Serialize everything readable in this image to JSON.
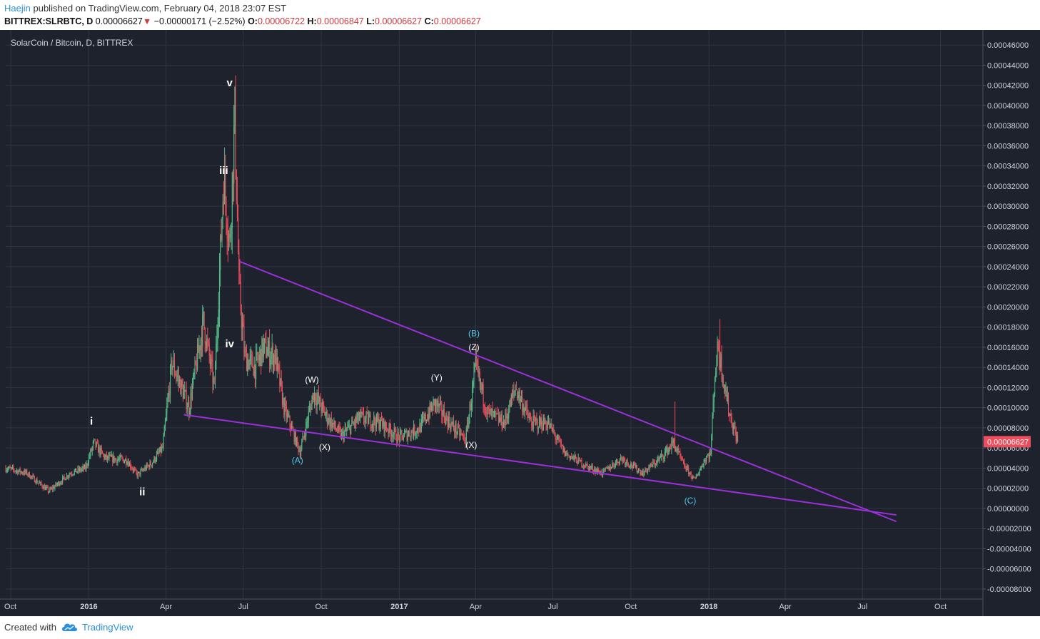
{
  "header": {
    "author": "Haejin",
    "published_text": "published on TradingView.com, February 04, 2018 23:07 EST",
    "symbol_text": "BITTREX:SLRBTC, D",
    "last_price": "0.00006627",
    "change_arrow": "▼",
    "change_text": "−0.00000171 (−2.52%)",
    "o_label": "O:",
    "o_value": "0.00006722",
    "h_label": "H:",
    "h_value": "0.00006847",
    "l_label": "L:",
    "l_value": "0.00006627",
    "c_label": "C:",
    "c_value": "0.00006627"
  },
  "footer": {
    "created_with": "Created with",
    "brand": "TradingView",
    "brand_icon": "cloud-icon"
  },
  "chart_data": {
    "type": "candlestick",
    "title": "SolarCoin / Bitcoin, D, BITTREX",
    "colors": {
      "background": "#1e222d",
      "grid": "#323542",
      "up": "#53b987",
      "down": "#eb4d5c",
      "trendline": "#9b30d9",
      "wave_label_white": "#ffffff",
      "wave_label_cyan": "#55c8e8",
      "last_price_bg": "#eb4d5c"
    },
    "x_range": [
      "2015-09-25",
      "2018-11-20"
    ],
    "y_range": [
      -9e-05,
      0.000475
    ],
    "x_ticks": [
      {
        "date": "2015-10-01",
        "label": "Oct"
      },
      {
        "date": "2016-01-01",
        "label": "2016"
      },
      {
        "date": "2016-04-01",
        "label": "Apr"
      },
      {
        "date": "2016-07-01",
        "label": "Jul"
      },
      {
        "date": "2016-10-01",
        "label": "Oct"
      },
      {
        "date": "2017-01-01",
        "label": "2017"
      },
      {
        "date": "2017-04-01",
        "label": "Apr"
      },
      {
        "date": "2017-07-01",
        "label": "Jul"
      },
      {
        "date": "2017-10-01",
        "label": "Oct"
      },
      {
        "date": "2018-01-01",
        "label": "2018"
      },
      {
        "date": "2018-04-01",
        "label": "Apr"
      },
      {
        "date": "2018-07-01",
        "label": "Jul"
      },
      {
        "date": "2018-10-01",
        "label": "Oct"
      }
    ],
    "y_ticks": [
      "0.00046000",
      "0.00044000",
      "0.00042000",
      "0.00040000",
      "0.00038000",
      "0.00036000",
      "0.00034000",
      "0.00032000",
      "0.00030000",
      "0.00028000",
      "0.00026000",
      "0.00024000",
      "0.00022000",
      "0.00020000",
      "0.00018000",
      "0.00016000",
      "0.00014000",
      "0.00012000",
      "0.00010000",
      "0.00008000",
      "0.00006000",
      "0.00004000",
      "0.00002000",
      "0.00000000",
      "-0.00002000",
      "-0.00004000",
      "-0.00006000",
      "-0.00008000"
    ],
    "last_price": {
      "value": 6.627e-05,
      "label": "0.00006627"
    },
    "price_path": [
      {
        "date": "2015-09-25",
        "close": 4e-05
      },
      {
        "date": "2015-10-20",
        "close": 3.5e-05
      },
      {
        "date": "2015-11-15",
        "close": 1.7e-05
      },
      {
        "date": "2015-12-10",
        "close": 3.5e-05
      },
      {
        "date": "2015-12-28",
        "close": 4e-05
      },
      {
        "date": "2016-01-07",
        "close": 6.5e-05
      },
      {
        "date": "2016-01-20",
        "close": 5e-05
      },
      {
        "date": "2016-02-15",
        "close": 4.8e-05
      },
      {
        "date": "2016-02-27",
        "close": 3.3e-05
      },
      {
        "date": "2016-03-15",
        "close": 4.5e-05
      },
      {
        "date": "2016-03-28",
        "close": 6e-05
      },
      {
        "date": "2016-04-08",
        "close": 0.000145
      },
      {
        "date": "2016-04-28",
        "close": 0.0001
      },
      {
        "date": "2016-05-15",
        "close": 0.000185
      },
      {
        "date": "2016-05-28",
        "close": 0.00012
      },
      {
        "date": "2016-06-08",
        "close": 0.00033
      },
      {
        "date": "2016-06-15",
        "close": 0.00026
      },
      {
        "date": "2016-06-21",
        "close": 0.00039
      },
      {
        "date": "2016-06-26",
        "close": 0.00022
      },
      {
        "date": "2016-07-03",
        "close": 0.00015
      },
      {
        "date": "2016-07-15",
        "close": 0.00014
      },
      {
        "date": "2016-07-25",
        "close": 0.00016
      },
      {
        "date": "2016-08-08",
        "close": 0.00015
      },
      {
        "date": "2016-08-18",
        "close": 0.0001
      },
      {
        "date": "2016-09-06",
        "close": 5.6e-05
      },
      {
        "date": "2016-09-22",
        "close": 0.000115
      },
      {
        "date": "2016-10-08",
        "close": 9e-05
      },
      {
        "date": "2016-10-25",
        "close": 7.2e-05
      },
      {
        "date": "2016-11-15",
        "close": 9e-05
      },
      {
        "date": "2016-12-10",
        "close": 8.5e-05
      },
      {
        "date": "2017-01-01",
        "close": 7e-05
      },
      {
        "date": "2017-01-25",
        "close": 8e-05
      },
      {
        "date": "2017-02-12",
        "close": 0.000105
      },
      {
        "date": "2017-03-01",
        "close": 8.5e-05
      },
      {
        "date": "2017-03-20",
        "close": 6.8e-05
      },
      {
        "date": "2017-04-01",
        "close": 0.00014
      },
      {
        "date": "2017-04-15",
        "close": 9.5e-05
      },
      {
        "date": "2017-05-05",
        "close": 8.5e-05
      },
      {
        "date": "2017-05-18",
        "close": 0.00012
      },
      {
        "date": "2017-06-05",
        "close": 8.5e-05
      },
      {
        "date": "2017-06-25",
        "close": 8.5e-05
      },
      {
        "date": "2017-07-15",
        "close": 5.5e-05
      },
      {
        "date": "2017-08-10",
        "close": 4.2e-05
      },
      {
        "date": "2017-08-28",
        "close": 3.5e-05
      },
      {
        "date": "2017-09-20",
        "close": 5e-05
      },
      {
        "date": "2017-10-15",
        "close": 3.5e-05
      },
      {
        "date": "2017-11-05",
        "close": 5e-05
      },
      {
        "date": "2017-11-20",
        "close": 6.5e-05
      },
      {
        "date": "2017-12-01",
        "close": 4.5e-05
      },
      {
        "date": "2017-12-15",
        "close": 2.8e-05
      },
      {
        "date": "2017-12-28",
        "close": 5e-05
      },
      {
        "date": "2018-01-03",
        "close": 5.5e-05
      },
      {
        "date": "2018-01-08",
        "close": 0.000135
      },
      {
        "date": "2018-01-12",
        "close": 0.00016
      },
      {
        "date": "2018-01-18",
        "close": 0.00013
      },
      {
        "date": "2018-01-25",
        "close": 9.5e-05
      },
      {
        "date": "2018-02-04",
        "close": 6.627e-05
      }
    ],
    "trendlines": [
      {
        "from": {
          "date": "2016-06-27",
          "value": 0.000245
        },
        "to": {
          "date": "2018-08-10",
          "value": -1.3e-05
        }
      },
      {
        "from": {
          "date": "2016-04-22",
          "value": 9.3e-05
        },
        "to": {
          "date": "2018-08-10",
          "value": -6.5e-06
        }
      }
    ],
    "wave_labels": [
      {
        "text": "i",
        "date": "2016-01-04",
        "value": 8.3e-05,
        "color": "white",
        "size": "big"
      },
      {
        "text": "ii",
        "date": "2016-03-04",
        "value": 1.3e-05,
        "color": "white",
        "size": "big"
      },
      {
        "text": "iii",
        "date": "2016-06-08",
        "value": 0.000332,
        "color": "white",
        "size": "big"
      },
      {
        "text": "v",
        "date": "2016-06-15",
        "value": 0.000419,
        "color": "white",
        "size": "big"
      },
      {
        "text": "iv",
        "date": "2016-06-15",
        "value": 0.00016,
        "color": "white",
        "size": "big"
      },
      {
        "text": "(W)",
        "date": "2016-09-20",
        "value": 0.000125,
        "color": "white",
        "size": "small"
      },
      {
        "text": "(A)",
        "date": "2016-09-03",
        "value": 4.5e-05,
        "color": "cyan",
        "size": "small"
      },
      {
        "text": "(X)",
        "date": "2016-10-05",
        "value": 5.8e-05,
        "color": "white",
        "size": "small"
      },
      {
        "text": "(Y)",
        "date": "2017-02-14",
        "value": 0.000127,
        "color": "white",
        "size": "small"
      },
      {
        "text": "(X)",
        "date": "2017-03-27",
        "value": 6e-05,
        "color": "white",
        "size": "small"
      },
      {
        "text": "(B)",
        "date": "2017-03-30",
        "value": 0.000171,
        "color": "cyan",
        "size": "small"
      },
      {
        "text": "(Z)",
        "date": "2017-03-30",
        "value": 0.000157,
        "color": "white",
        "size": "small"
      },
      {
        "text": "(C)",
        "date": "2017-12-10",
        "value": 5e-06,
        "color": "cyan",
        "size": "small"
      }
    ]
  }
}
